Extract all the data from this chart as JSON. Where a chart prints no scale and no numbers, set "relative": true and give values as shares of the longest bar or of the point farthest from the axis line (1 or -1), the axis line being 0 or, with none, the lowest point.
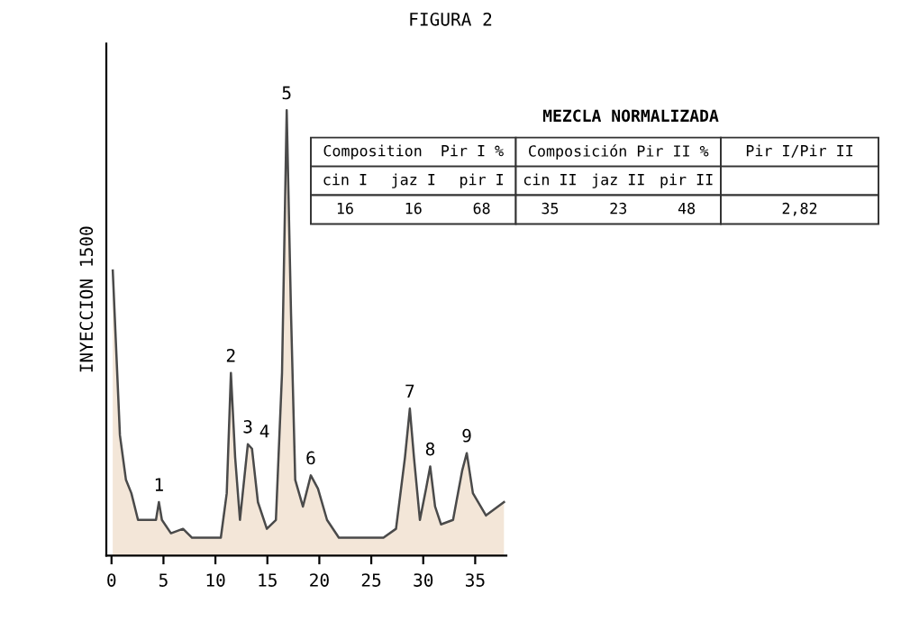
{
  "chart_data": {
    "type": "area",
    "title": "FIGURA 2",
    "subtitle": "MEZCLA NORMALIZADA",
    "ylabel": "INYECCION 1500",
    "relative": true,
    "x": [
      0.12,
      0.81,
      1.39,
      1.91,
      2.55,
      3.64,
      4.28,
      4.56,
      4.85,
      5.72,
      6.88,
      7.75,
      8.84,
      10.52,
      11.09,
      11.49,
      11.9,
      12.36,
      13.12,
      13.52,
      14.09,
      14.95,
      15.82,
      16.41,
      16.86,
      17.28,
      17.68,
      18.42,
      19.18,
      19.87,
      20.74,
      21.88,
      26.17,
      27.38,
      28.24,
      28.71,
      29.11,
      29.68,
      30.27,
      30.67,
      31.14,
      31.71,
      32.87,
      33.74,
      34.19,
      34.78,
      36.04,
      37.77
    ],
    "series": [
      {
        "color": "#f3e6d8",
        "values": [
          0.64,
          0.27,
          0.17,
          0.14,
          0.08,
          0.08,
          0.08,
          0.12,
          0.08,
          0.05,
          0.06,
          0.04,
          0.04,
          0.04,
          0.14,
          0.41,
          0.22,
          0.08,
          0.25,
          0.24,
          0.12,
          0.06,
          0.08,
          0.41,
          1,
          0.54,
          0.17,
          0.11,
          0.18,
          0.15,
          0.08,
          0.04,
          0.04,
          0.06,
          0.22,
          0.33,
          0.22,
          0.08,
          0.15,
          0.2,
          0.11,
          0.07,
          0.08,
          0.19,
          0.23,
          0.14,
          0.09,
          0.12
        ]
      }
    ],
    "xlim": [
      -0.5,
      38
    ],
    "xticks": [
      0,
      5,
      10,
      15,
      20,
      25,
      30,
      35
    ],
    "tick_labels": "x",
    "grid": false,
    "annotations": [
      {
        "text": "1",
        "x": 4.56,
        "y": 0.12
      },
      {
        "text": "2",
        "x": 11.49,
        "y": 0.41
      },
      {
        "text": "3",
        "x": 13.12,
        "y": 0.25
      },
      {
        "text": "4",
        "x": 13.52,
        "y": 0.24
      },
      {
        "text": "5",
        "x": 16.86,
        "y": 1
      },
      {
        "text": "6",
        "x": 19.18,
        "y": 0.18
      },
      {
        "text": "7",
        "x": 28.71,
        "y": 0.33
      },
      {
        "text": "8",
        "x": 30.67,
        "y": 0.2
      },
      {
        "text": "9",
        "x": 34.19,
        "y": 0.23
      },
      "Composition  Pir I %",
      "Composición Pir II %",
      "Pir I/Pir II",
      "cin I",
      "jaz I",
      "pir I",
      "cin II",
      "jaz II",
      "pir II",
      "16",
      "16",
      "68",
      "35",
      "23",
      "48",
      "2,82"
    ]
  }
}
